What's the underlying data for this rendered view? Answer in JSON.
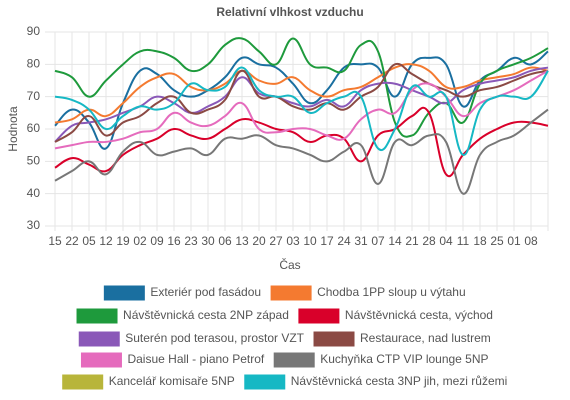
{
  "chart_data": {
    "type": "line",
    "title": "Relativní vlhkost vzduchu",
    "x_label": "Čas",
    "y_label": "Hodnota",
    "categories": [
      "15",
      "22",
      "05",
      "12",
      "19",
      "02",
      "09",
      "16",
      "23",
      "30",
      "06",
      "13",
      "20",
      "27",
      "03",
      "10",
      "17",
      "24",
      "31",
      "07",
      "14",
      "21",
      "28",
      "04",
      "11",
      "18",
      "25",
      "01",
      "08",
      null
    ],
    "ylim": [
      30,
      90
    ],
    "yticks": [
      30,
      40,
      50,
      60,
      70,
      80,
      90
    ],
    "grid": true,
    "series": [
      {
        "name": "Exteriér pod fasádou",
        "color": "#1a6fa0",
        "values": [
          61,
          66,
          62,
          54,
          68,
          78,
          77,
          72,
          70,
          72,
          76,
          82,
          80,
          79,
          74,
          68,
          72,
          79,
          80,
          79,
          70,
          80,
          82,
          80,
          67,
          75,
          78,
          82,
          80,
          84
        ]
      },
      {
        "name": "Chodba 1PP sloup u výtahu",
        "color": "#f47a30",
        "values": [
          62,
          63,
          66,
          64,
          68,
          73,
          76,
          77,
          73,
          72,
          74,
          78,
          75,
          74,
          76,
          72,
          70,
          72,
          73,
          76,
          79,
          80,
          78,
          73,
          73,
          75,
          76,
          77,
          79,
          78
        ]
      },
      {
        "name": "Návštěvnická cesta 2NP západ",
        "color": "#1e9a3c",
        "values": [
          78,
          76,
          70,
          75,
          80,
          84,
          84,
          82,
          78,
          80,
          86,
          88,
          84,
          80,
          88,
          80,
          79,
          78,
          86,
          84,
          62,
          58,
          65,
          68,
          62,
          74,
          78,
          80,
          82,
          85
        ]
      },
      {
        "name": "Návštěvnická cesta, východ",
        "color": "#d9002a",
        "values": [
          48,
          51,
          49,
          47,
          52,
          55,
          57,
          60,
          58,
          57,
          60,
          63,
          62,
          60,
          59,
          56,
          58,
          57,
          50,
          58,
          60,
          64,
          65,
          46,
          52,
          57,
          60,
          62,
          62,
          61
        ]
      },
      {
        "name": "Suterén pod terasou, prostor VZT",
        "color": "#8a58b8",
        "values": [
          56,
          61,
          62,
          63,
          65,
          67,
          70,
          68,
          65,
          67,
          70,
          76,
          71,
          70,
          68,
          67,
          69,
          67,
          72,
          74,
          74,
          72,
          70,
          68,
          72,
          74,
          75,
          76,
          78,
          79
        ]
      },
      {
        "name": "Restaurace, nad lustrem",
        "color": "#8b4a44",
        "values": [
          56,
          59,
          64,
          58,
          62,
          64,
          68,
          70,
          65,
          66,
          69,
          78,
          70,
          70,
          67,
          66,
          68,
          66,
          70,
          73,
          80,
          77,
          74,
          72,
          70,
          72,
          73,
          75,
          77,
          78
        ]
      },
      {
        "name": "Daisue Hall - piano Petrof",
        "color": "#e56bbd",
        "values": [
          54,
          55,
          56,
          56,
          57,
          59,
          60,
          65,
          62,
          61,
          64,
          68,
          60,
          59,
          60,
          60,
          58,
          57,
          63,
          66,
          65,
          72,
          74,
          70,
          64,
          68,
          70,
          72,
          75,
          78
        ]
      },
      {
        "name": "Kuchyňka CTP VIP lounge 5NP",
        "color": "#777777",
        "values": [
          44,
          47,
          50,
          46,
          53,
          56,
          52,
          53,
          54,
          52,
          57,
          57,
          58,
          55,
          54,
          52,
          50,
          53,
          55,
          43,
          56,
          55,
          58,
          56,
          40,
          52,
          56,
          58,
          62,
          66
        ]
      },
      {
        "name": "Kancelář komisaře 5NP",
        "color": "#b8b53a",
        "values": [
          null,
          null,
          null,
          null,
          null,
          null,
          null,
          null,
          null,
          null,
          null,
          null,
          null,
          null,
          null,
          null,
          null,
          null,
          null,
          null,
          null,
          null,
          null,
          null,
          null,
          null,
          null,
          null,
          null,
          null
        ]
      },
      {
        "name": "Návštěvnická cesta 3NP jih, mezi růžemi",
        "color": "#16b8c4",
        "values": [
          70,
          69,
          66,
          60,
          64,
          67,
          66,
          68,
          74,
          72,
          73,
          79,
          72,
          70,
          70,
          65,
          68,
          70,
          70,
          54,
          60,
          73,
          70,
          70,
          52,
          66,
          70,
          70,
          70,
          78
        ]
      }
    ]
  }
}
